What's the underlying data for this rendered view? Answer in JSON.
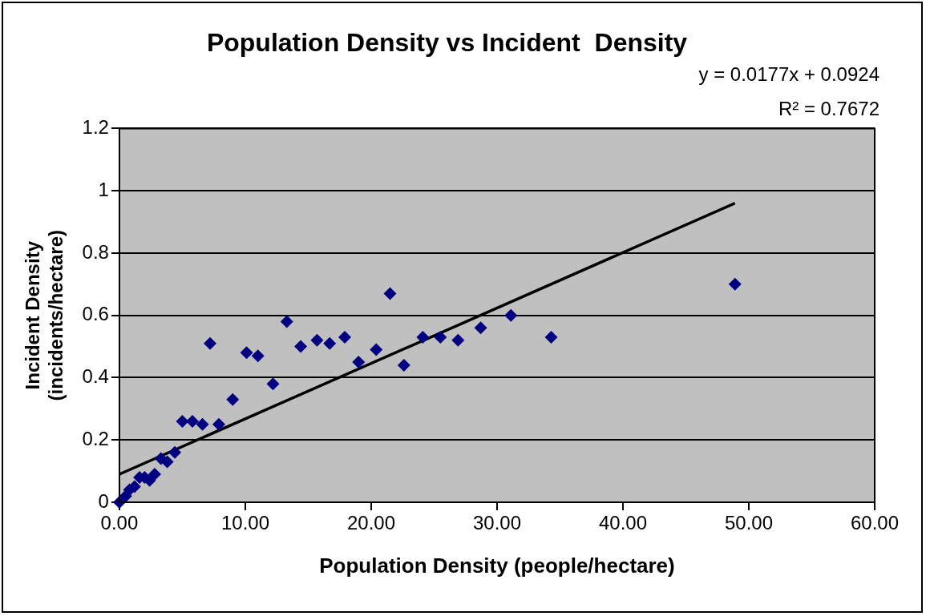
{
  "chart_data": {
    "type": "scatter",
    "title": "Population Density vs Incident  Density",
    "xlabel": "Population Density (people/hectare)",
    "ylabel": "Incident Density\n(incidents/hectare)",
    "annotations": [
      "y = 0.0177x + 0.0924",
      "R² = 0.7672"
    ],
    "xlim": [
      0,
      60
    ],
    "xticks": [
      {
        "value": 0,
        "label": "0.00"
      },
      {
        "value": 10,
        "label": "10.00"
      },
      {
        "value": 20,
        "label": "20.00"
      },
      {
        "value": 30,
        "label": "30.00"
      },
      {
        "value": 40,
        "label": "40.00"
      },
      {
        "value": 50,
        "label": "50.00"
      },
      {
        "value": 60,
        "label": "60.00"
      }
    ],
    "ylim": [
      0,
      1.2
    ],
    "yticks": [
      0,
      0.2,
      0.4,
      0.6,
      0.8,
      1,
      1.2
    ],
    "grid": "y",
    "legend": false,
    "marker": "diamond",
    "series": [
      {
        "color": "#000080",
        "x": [
          0,
          0.2,
          0.5,
          0.8,
          1.2,
          1.6,
          2.0,
          2.4,
          2.8,
          3.3,
          3.8,
          4.4,
          5.0,
          5.8,
          6.6,
          7.2,
          7.9,
          9.0,
          10.1,
          11.0,
          12.2,
          13.3,
          14.4,
          15.7,
          16.7,
          17.9,
          19.0,
          20.4,
          21.5,
          22.6,
          24.1,
          25.5,
          26.9,
          28.7,
          31.1,
          34.3,
          48.9
        ],
        "values": [
          0,
          null,
          0.02,
          0.04,
          0.05,
          0.08,
          0.08,
          0.07,
          0.09,
          0.14,
          0.13,
          0.16,
          0.26,
          0.26,
          0.25,
          0.51,
          0.25,
          0.33,
          0.48,
          0.47,
          0.38,
          0.58,
          0.5,
          0.52,
          0.51,
          0.53,
          0.45,
          0.49,
          0.67,
          0.44,
          0.53,
          0.53,
          0.52,
          0.56,
          0.6,
          0.53,
          0.7
        ]
      },
      {
        "type": "line",
        "color": "#000000",
        "marker": "none",
        "x": [
          0,
          48.9
        ],
        "values": [
          0.09,
          0.96
        ]
      }
    ]
  }
}
